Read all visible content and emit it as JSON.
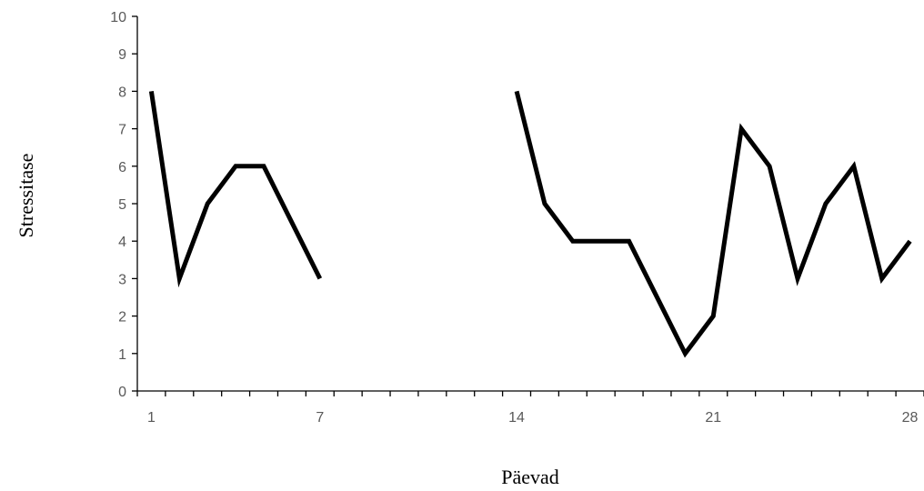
{
  "chart_data": {
    "type": "line",
    "title": "",
    "xlabel": "Päevad",
    "ylabel": "Stressitase",
    "xlim": [
      1,
      28
    ],
    "ylim": [
      0,
      10
    ],
    "y_ticks": [
      0,
      1,
      2,
      3,
      4,
      5,
      6,
      7,
      8,
      9,
      10
    ],
    "x_tick_labels": [
      1,
      7,
      14,
      21,
      28
    ],
    "grid": false,
    "legend": "none",
    "line_color": "#000000",
    "series": [
      {
        "x": [
          1,
          2,
          3,
          4,
          5,
          6,
          7,
          8,
          9,
          10,
          11,
          12,
          13,
          14,
          15,
          16,
          17,
          18,
          19,
          20,
          21,
          22,
          23,
          24,
          25,
          26,
          27,
          28
        ],
        "values": [
          8,
          3,
          5,
          6,
          6,
          4.5,
          3,
          null,
          null,
          null,
          null,
          null,
          null,
          8,
          5,
          4,
          4,
          4,
          2.5,
          1,
          2,
          7,
          6,
          3,
          5,
          6,
          3,
          4
        ]
      }
    ]
  }
}
